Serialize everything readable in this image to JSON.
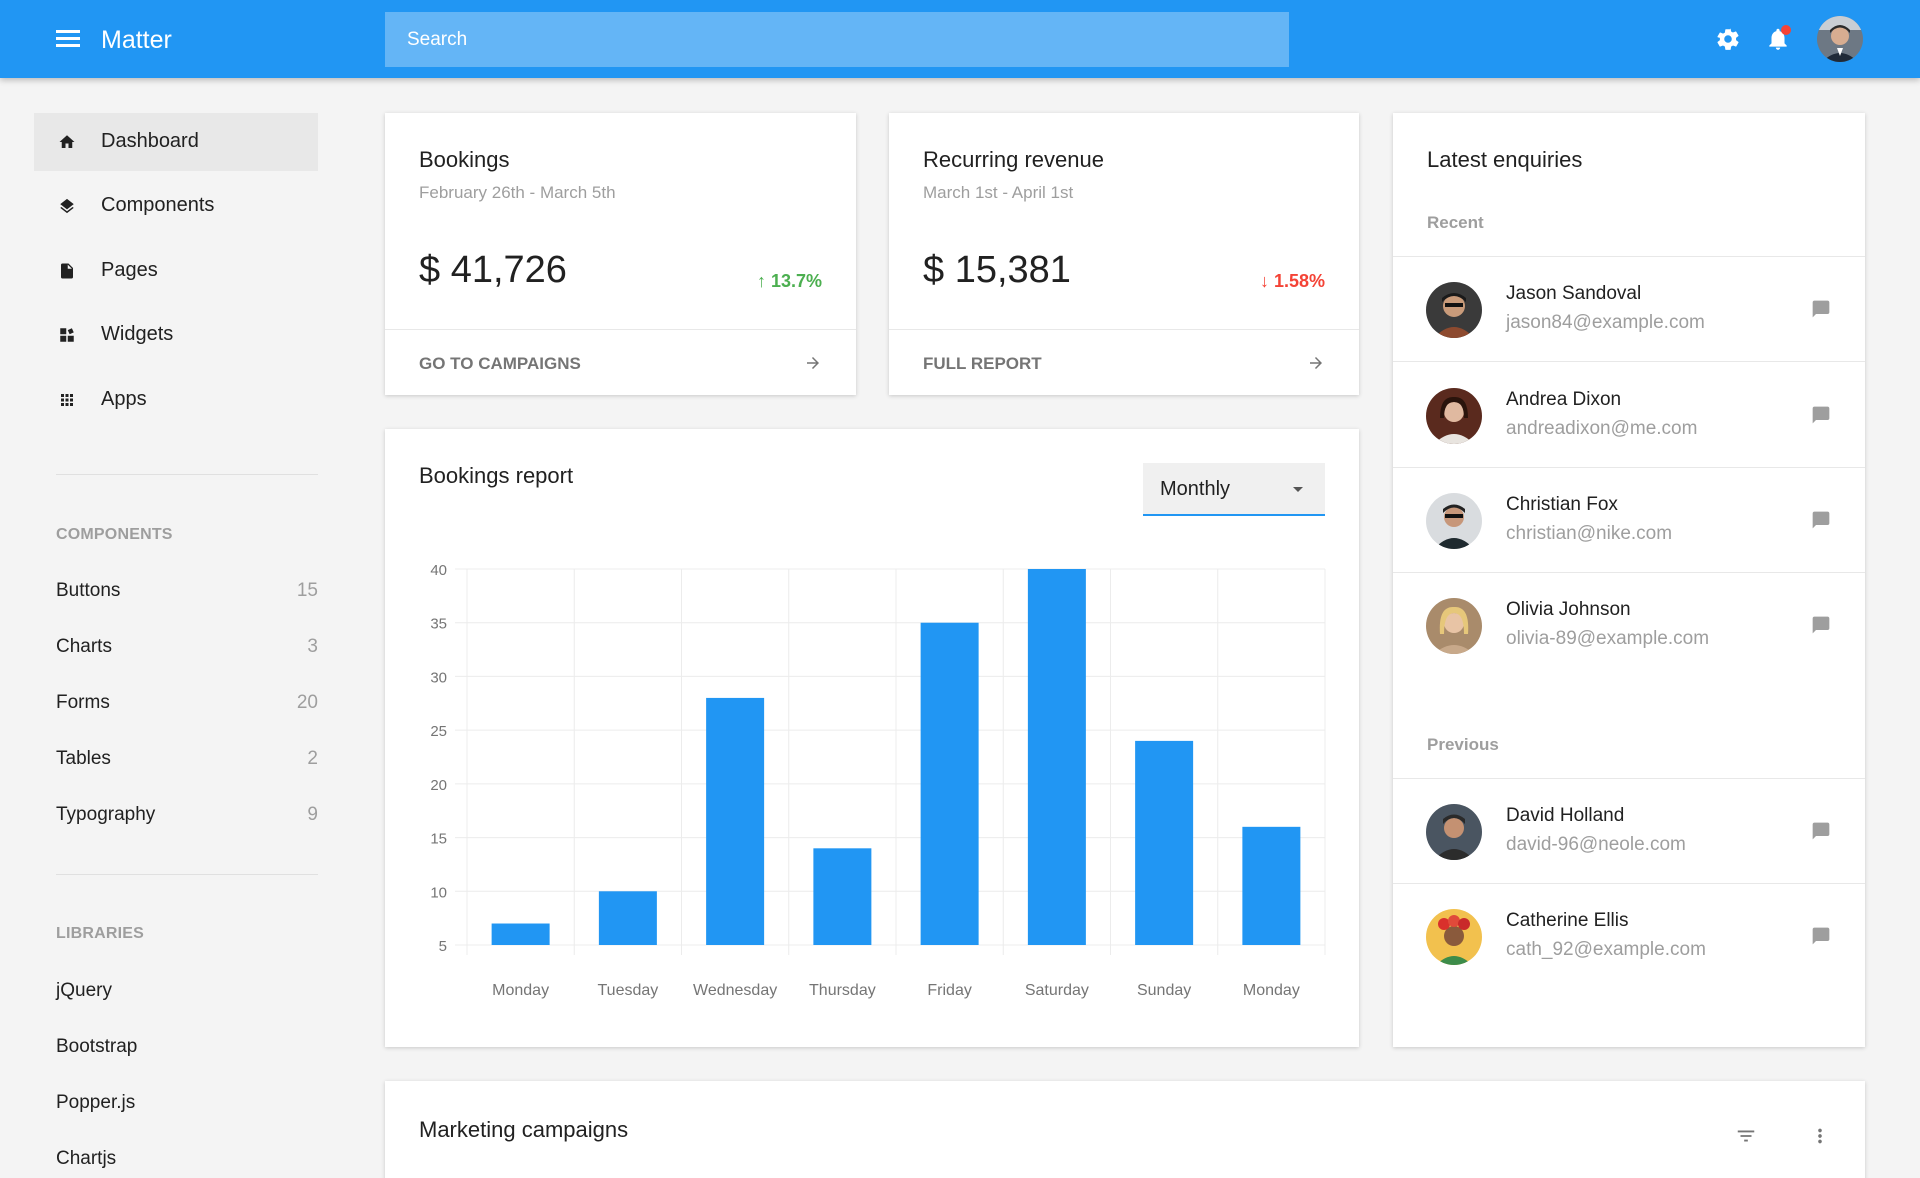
{
  "app": {
    "title": "Matter"
  },
  "search": {
    "placeholder": "Search"
  },
  "header": {
    "icons": [
      "menu-icon",
      "gear-icon",
      "bell-icon",
      "avatar"
    ],
    "notification_color": "#f44336"
  },
  "sidebar": {
    "items": [
      {
        "label": "Dashboard",
        "icon": "home-icon"
      },
      {
        "label": "Components",
        "icon": "layers-icon"
      },
      {
        "label": "Pages",
        "icon": "file-icon"
      },
      {
        "label": "Widgets",
        "icon": "widgets-icon"
      },
      {
        "label": "Apps",
        "icon": "apps-grid-icon"
      }
    ],
    "components_title": "COMPONENTS",
    "components": [
      {
        "label": "Buttons",
        "count": "15"
      },
      {
        "label": "Charts",
        "count": "3"
      },
      {
        "label": "Forms",
        "count": "20"
      },
      {
        "label": "Tables",
        "count": "2"
      },
      {
        "label": "Typography",
        "count": "9"
      }
    ],
    "libraries_title": "LIBRARIES",
    "libraries": [
      {
        "label": "jQuery"
      },
      {
        "label": "Bootstrap"
      },
      {
        "label": "Popper.js"
      },
      {
        "label": "Chartjs"
      }
    ]
  },
  "bookings": {
    "title": "Bookings",
    "range": "February 26th - March 5th",
    "value": "$ 41,726",
    "change": "13.7%",
    "trend": "up",
    "footer": "GO TO CAMPAIGNS"
  },
  "revenue": {
    "title": "Recurring revenue",
    "range": "March 1st - April 1st",
    "value": "$ 15,381",
    "change": "1.58%",
    "trend": "down",
    "footer": "FULL REPORT"
  },
  "report": {
    "title": "Bookings report",
    "period": "Monthly"
  },
  "chart_data": {
    "type": "bar",
    "categories": [
      "Monday",
      "Tuesday",
      "Wednesday",
      "Thursday",
      "Friday",
      "Saturday",
      "Sunday",
      "Monday"
    ],
    "values": [
      7,
      10,
      28,
      14,
      35,
      40,
      24,
      16
    ],
    "ylim": [
      5,
      40
    ],
    "yticks": [
      5,
      10,
      15,
      20,
      25,
      30,
      35,
      40
    ],
    "grid": true,
    "color": "#2196f3"
  },
  "enquiries": {
    "title": "Latest enquiries",
    "recent_label": "Recent",
    "previous_label": "Previous",
    "recent": [
      {
        "name": "Jason Sandoval",
        "email": "jason84@example.com"
      },
      {
        "name": "Andrea Dixon",
        "email": "andreadixon@me.com"
      },
      {
        "name": "Christian Fox",
        "email": "christian@nike.com"
      },
      {
        "name": "Olivia Johnson",
        "email": "olivia-89@example.com"
      }
    ],
    "previous": [
      {
        "name": "David Holland",
        "email": "david-96@neole.com"
      },
      {
        "name": "Catherine Ellis",
        "email": "cath_92@example.com"
      }
    ]
  },
  "campaigns": {
    "title": "Marketing campaigns"
  }
}
